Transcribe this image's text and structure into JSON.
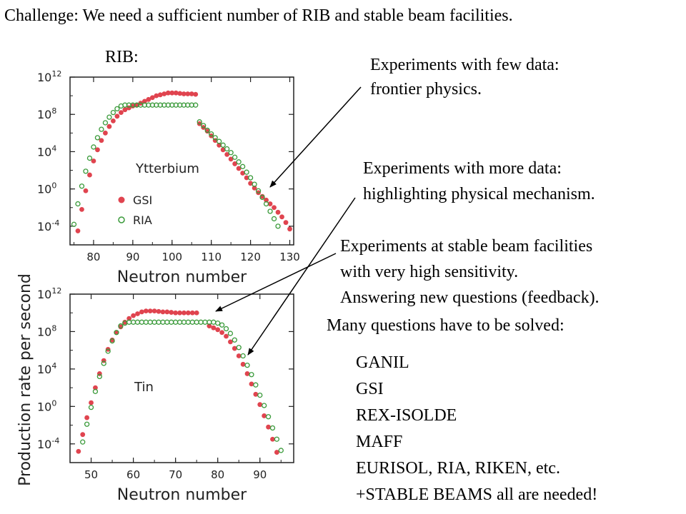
{
  "header": {
    "challenge": "Challenge: We need a sufficient number of RIB and stable beam facilities.",
    "rib_label": "RIB:"
  },
  "notes": {
    "frontier": [
      "Experiments with few data:",
      "frontier physics."
    ],
    "mechanism": [
      "Experiments with more data:",
      "highlighting physical mechanism."
    ],
    "stable": [
      "Experiments at stable beam facilities",
      "with very high sensitivity.",
      "Answering new questions (feedback)."
    ],
    "many_questions": "Many questions have to be solved:"
  },
  "facilities": [
    "GANIL",
    "GSI",
    "REX-ISOLDE",
    "MAFF",
    "EURISOL, RIA, RIKEN, etc.",
    "+STABLE BEAMS all are needed!"
  ],
  "colors": {
    "gsi": "#e0444f",
    "ria": "#3a9a3a",
    "axis": "#222222",
    "arrow": "#000000"
  },
  "chart_data": [
    {
      "type": "scatter",
      "element": "Ytterbium",
      "xlabel": "Neutron number",
      "ylabel": "Production rate per second",
      "xlim": [
        74,
        131
      ],
      "xticks": [
        80,
        90,
        100,
        110,
        120,
        130
      ],
      "ylim_log10": [
        -6,
        12
      ],
      "yticks": [
        {
          "label": "10",
          "exp": "12",
          "log": 12
        },
        {
          "label": "10",
          "exp": "8",
          "log": 8
        },
        {
          "label": "10",
          "exp": "4",
          "log": 4
        },
        {
          "label": "10",
          "exp": "0",
          "log": 0
        },
        {
          "label": "10",
          "exp": "-4",
          "log": -4
        }
      ],
      "legend": [
        {
          "name": "GSI",
          "marker": "filled"
        },
        {
          "name": "RIA",
          "marker": "open"
        }
      ],
      "legend_position": "lower-left",
      "series": [
        {
          "name": "GSI",
          "x": [
            76,
            77,
            78,
            79,
            80,
            81,
            82,
            83,
            84,
            85,
            86,
            87,
            88,
            89,
            90,
            91,
            92,
            93,
            94,
            95,
            96,
            97,
            98,
            99,
            100,
            101,
            102,
            103,
            104,
            105,
            106,
            107,
            108,
            109,
            110,
            111,
            112,
            113,
            114,
            115,
            116,
            117,
            118,
            119,
            120,
            121,
            122,
            123,
            124,
            125,
            126,
            127,
            128,
            129,
            130
          ],
          "log_values": [
            -4.5,
            -2.2,
            -0.2,
            1.5,
            3.0,
            4.2,
            5.2,
            6.0,
            6.7,
            7.3,
            7.8,
            8.2,
            8.5,
            8.7,
            8.9,
            9.0,
            9.2,
            9.4,
            9.6,
            9.8,
            10.0,
            10.1,
            10.2,
            10.3,
            10.3,
            10.3,
            10.25,
            10.2,
            10.2,
            10.2,
            10.15,
            7.0,
            6.6,
            6.2,
            5.7,
            5.2,
            4.7,
            4.2,
            3.7,
            3.2,
            2.7,
            2.2,
            1.7,
            1.2,
            0.6,
            0.1,
            -0.4,
            -0.8,
            -1.2,
            -1.6,
            -2.0,
            -2.5,
            -3.0,
            -3.6,
            -4.3
          ]
        },
        {
          "name": "RIA",
          "x": [
            75,
            76,
            77,
            78,
            79,
            80,
            81,
            82,
            83,
            84,
            85,
            86,
            87,
            88,
            89,
            90,
            91,
            92,
            93,
            94,
            95,
            96,
            97,
            98,
            99,
            100,
            101,
            102,
            103,
            104,
            105,
            106,
            107,
            108,
            109,
            110,
            111,
            112,
            113,
            114,
            115,
            116,
            117,
            118,
            119,
            120,
            121,
            122,
            123,
            124,
            125,
            126,
            127
          ],
          "log_values": [
            -3.8,
            -1.6,
            0.3,
            1.9,
            3.3,
            4.5,
            5.5,
            6.4,
            7.1,
            7.7,
            8.2,
            8.6,
            8.9,
            9.0,
            9.0,
            9.0,
            9.0,
            9.0,
            9.0,
            9.0,
            9.0,
            9.0,
            9.0,
            9.0,
            9.0,
            9.0,
            9.0,
            9.0,
            9.0,
            9.0,
            9.0,
            9.0,
            7.2,
            6.8,
            6.3,
            5.9,
            5.5,
            5.1,
            4.7,
            4.3,
            3.9,
            3.4,
            2.9,
            2.4,
            1.8,
            1.2,
            0.5,
            -0.2,
            -0.9,
            -1.6,
            -2.4,
            -3.2,
            -4.0
          ]
        }
      ]
    },
    {
      "type": "scatter",
      "element": "Tin",
      "xlabel": "Neutron number",
      "ylabel": "Production rate per second",
      "xlim": [
        45,
        98
      ],
      "xticks": [
        50,
        60,
        70,
        80,
        90
      ],
      "ylim_log10": [
        -6,
        12
      ],
      "yticks": [
        {
          "label": "10",
          "exp": "12",
          "log": 12
        },
        {
          "label": "10",
          "exp": "8",
          "log": 8
        },
        {
          "label": "10",
          "exp": "4",
          "log": 4
        },
        {
          "label": "10",
          "exp": "0",
          "log": 0
        },
        {
          "label": "10",
          "exp": "-4",
          "log": -4
        }
      ],
      "series": [
        {
          "name": "GSI",
          "x": [
            47,
            48,
            49,
            50,
            51,
            52,
            53,
            54,
            55,
            56,
            57,
            58,
            59,
            60,
            61,
            62,
            63,
            64,
            65,
            66,
            67,
            68,
            69,
            70,
            71,
            72,
            73,
            74,
            75,
            78,
            79,
            80,
            81,
            82,
            83,
            84,
            85,
            86,
            87,
            88,
            89,
            90,
            91,
            92,
            93,
            94
          ],
          "log_values": [
            -4.8,
            -3.0,
            -1.2,
            0.4,
            2.0,
            3.5,
            4.9,
            6.1,
            7.1,
            7.9,
            8.5,
            9.0,
            9.4,
            9.7,
            9.9,
            10.1,
            10.2,
            10.2,
            10.2,
            10.15,
            10.1,
            10.1,
            10.05,
            10.0,
            10.0,
            10.0,
            10.0,
            10.0,
            10.0,
            8.6,
            8.4,
            8.2,
            7.9,
            7.5,
            6.9,
            6.2,
            5.4,
            4.5,
            3.5,
            2.4,
            1.3,
            0.2,
            -1.0,
            -2.2,
            -3.5,
            -4.9
          ]
        },
        {
          "name": "RIA",
          "x": [
            48,
            49,
            50,
            51,
            52,
            53,
            54,
            55,
            56,
            57,
            58,
            59,
            60,
            61,
            62,
            63,
            64,
            65,
            66,
            67,
            68,
            69,
            70,
            71,
            72,
            73,
            74,
            75,
            76,
            77,
            78,
            79,
            80,
            81,
            82,
            83,
            84,
            85,
            86,
            87,
            88,
            89,
            90,
            91,
            92,
            93,
            94,
            95
          ],
          "log_values": [
            -3.8,
            -1.9,
            -0.1,
            1.6,
            3.2,
            4.6,
            5.9,
            7.0,
            7.9,
            8.6,
            8.9,
            9.0,
            9.0,
            9.0,
            9.0,
            9.0,
            9.0,
            9.0,
            9.0,
            9.0,
            9.0,
            9.0,
            9.0,
            9.0,
            9.0,
            9.0,
            9.0,
            9.0,
            9.0,
            9.0,
            9.0,
            9.0,
            8.9,
            8.7,
            8.3,
            7.8,
            7.1,
            6.3,
            5.4,
            4.4,
            3.4,
            2.3,
            1.2,
            0.1,
            -1.1,
            -2.3,
            -3.5,
            -4.7
          ]
        }
      ]
    }
  ]
}
